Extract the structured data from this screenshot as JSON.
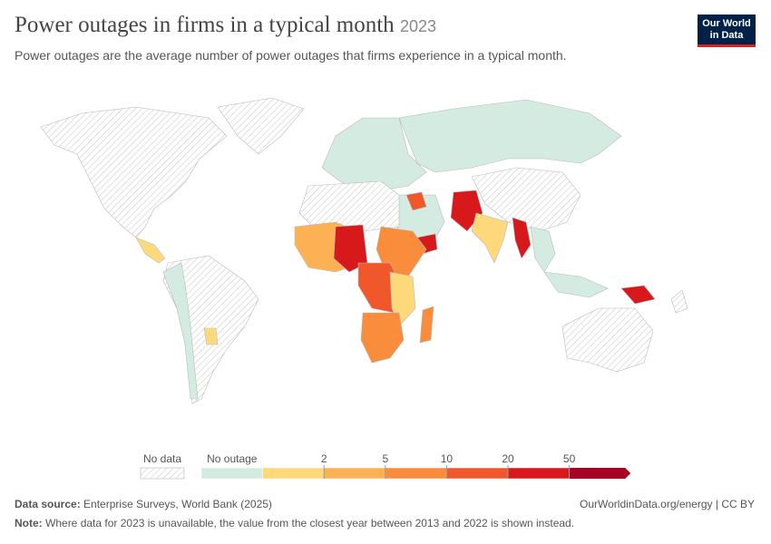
{
  "header": {
    "title": "Power outages in firms in a typical month",
    "year": "2023",
    "subtitle": "Power outages are the average number of power outages that firms experience in a typical month.",
    "logo": [
      "Our World",
      "in Data"
    ]
  },
  "legend": {
    "no_data": "No data",
    "first_bin": "No outage",
    "colors": [
      "#d3ebe0",
      "#fdd97c",
      "#fdb155",
      "#f98d3c",
      "#f0582c",
      "#d7191c",
      "#a50026"
    ],
    "thresholds": [
      2,
      5,
      10,
      20,
      50
    ]
  },
  "footer": {
    "source_label": "Data source:",
    "source": "Enterprise Surveys, World Bank (2025)",
    "link": "OurWorldinData.org/energy | CC BY",
    "note_label": "Note:",
    "note": "Where data for 2023 is unavailable, the value from the closest year between 2013 and 2022 is shown instead."
  }
}
